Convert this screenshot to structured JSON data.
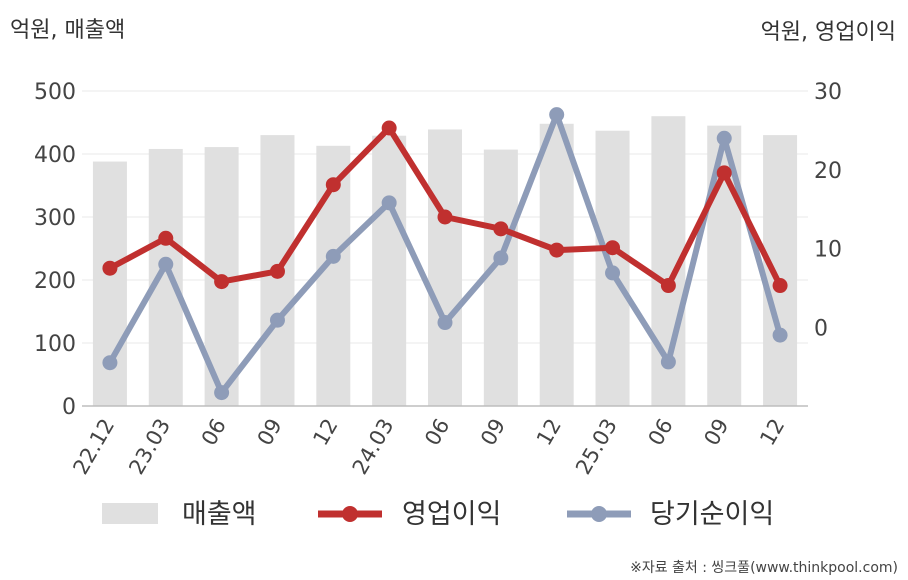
{
  "chart_data": {
    "type": "bar+line",
    "title": "",
    "left_axis_unit": "억원, 매출액",
    "right_axis_unit": "억원, 영업이익",
    "categories": [
      "22.12",
      "23.03",
      "06",
      "09",
      "12",
      "24.03",
      "06",
      "09",
      "12",
      "25.03",
      "06",
      "09",
      "12"
    ],
    "left_axis": {
      "ylim": [
        0,
        500
      ],
      "ticks": [
        "0",
        "100",
        "200",
        "300",
        "400",
        "500"
      ]
    },
    "right_axis": {
      "ylim": [
        -10,
        30
      ],
      "ticks": [
        "0",
        "10",
        "20",
        "30"
      ]
    },
    "series": [
      {
        "name": "매출액",
        "type": "bar",
        "axis": "left",
        "color": "#e0e0e0",
        "values": [
          388,
          408,
          411,
          430,
          413,
          429,
          439,
          407,
          448,
          437,
          460,
          445,
          430
        ]
      },
      {
        "name": "영업이익",
        "type": "line",
        "axis": "right",
        "color": "#c0302f",
        "values": [
          7.5,
          11.3,
          5.8,
          7.1,
          18.1,
          25.3,
          14.0,
          12.5,
          9.8,
          10.1,
          5.3,
          19.6,
          5.3
        ]
      },
      {
        "name": "당기순이익",
        "type": "line",
        "axis": "right",
        "color": "#8e9cb8",
        "values": [
          -4.5,
          8.0,
          -8.3,
          0.9,
          9.0,
          15.8,
          0.6,
          8.8,
          27.0,
          6.9,
          -4.4,
          24.0,
          -1.0
        ]
      }
    ],
    "grid": true,
    "legend_position": "bottom"
  },
  "source_text": "※자료 출처 : 씽크풀(www.thinkpool.com)"
}
